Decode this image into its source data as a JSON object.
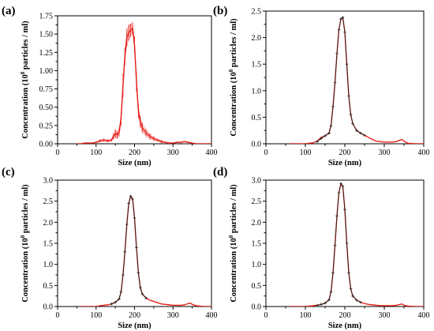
{
  "figure": {
    "panel_count": 4
  },
  "chart_data": [
    {
      "type": "line",
      "panel_label": "(a)",
      "xlabel": "Size (nm)",
      "ylabel_prefix": "Concentration (10",
      "ylabel_sup": "8",
      "ylabel_suffix": " particles / ml)",
      "xlim": [
        0,
        400
      ],
      "ylim": [
        0,
        1.75
      ],
      "xticks": [
        "0",
        "100",
        "200",
        "300",
        "400"
      ],
      "yticks": [
        "0.00",
        "0.25",
        "0.50",
        "0.75",
        "1.00",
        "1.25",
        "1.50",
        "1.75"
      ],
      "grid": false,
      "error_bars": true,
      "series": [
        {
          "color": "#e8211b",
          "x": [
            50,
            60,
            70,
            80,
            90,
            100,
            110,
            120,
            130,
            140,
            145,
            150,
            155,
            160,
            165,
            170,
            175,
            180,
            185,
            190,
            195,
            200,
            205,
            210,
            215,
            220,
            230,
            240,
            250,
            260,
            270,
            280,
            290,
            300,
            310,
            320,
            330,
            340,
            350,
            360,
            370,
            380,
            390,
            400
          ],
          "y": [
            0.0,
            0.0,
            0.01,
            0.01,
            0.01,
            0.02,
            0.04,
            0.05,
            0.04,
            0.05,
            0.1,
            0.14,
            0.12,
            0.16,
            0.35,
            0.8,
            1.2,
            1.45,
            1.52,
            1.55,
            1.58,
            1.35,
            0.85,
            0.45,
            0.3,
            0.22,
            0.15,
            0.1,
            0.07,
            0.05,
            0.03,
            0.02,
            0.01,
            0.01,
            0.02,
            0.02,
            0.03,
            0.02,
            0.01,
            0.0,
            0.0,
            0.0,
            0.0,
            0.0
          ],
          "err": [
            0.0,
            0.0,
            0.0,
            0.0,
            0.0,
            0.01,
            0.02,
            0.02,
            0.02,
            0.02,
            0.04,
            0.06,
            0.05,
            0.06,
            0.1,
            0.16,
            0.12,
            0.12,
            0.11,
            0.09,
            0.08,
            0.12,
            0.14,
            0.1,
            0.08,
            0.07,
            0.05,
            0.04,
            0.03,
            0.02,
            0.02,
            0.01,
            0.01,
            0.0,
            0.01,
            0.01,
            0.01,
            0.01,
            0.0,
            0.0,
            0.0,
            0.0,
            0.0,
            0.0
          ]
        }
      ]
    },
    {
      "type": "line",
      "panel_label": "(b)",
      "xlabel": "Size (nm)",
      "ylabel_prefix": "Concentration (10",
      "ylabel_sup": "8",
      "ylabel_suffix": " particles / ml)",
      "xlim": [
        0,
        400
      ],
      "ylim": [
        0,
        2.5
      ],
      "xticks": [
        "0",
        "100",
        "200",
        "300",
        "400"
      ],
      "yticks": [
        "0.0",
        "0.5",
        "1.0",
        "1.5",
        "2.0",
        "2.5"
      ],
      "grid": false,
      "error_bars": false,
      "series": [
        {
          "color": "#e8211b",
          "x": [
            60,
            80,
            100,
            110,
            120,
            130,
            140,
            150,
            160,
            165,
            170,
            175,
            180,
            185,
            190,
            195,
            200,
            205,
            210,
            215,
            220,
            230,
            240,
            250,
            260,
            270,
            280,
            290,
            300,
            310,
            320,
            330,
            340,
            345,
            350,
            360,
            380,
            400
          ],
          "y": [
            0.0,
            0.0,
            0.0,
            0.01,
            0.02,
            0.05,
            0.12,
            0.15,
            0.2,
            0.35,
            0.7,
            1.15,
            1.7,
            2.15,
            2.35,
            2.38,
            2.1,
            1.5,
            0.9,
            0.55,
            0.38,
            0.25,
            0.2,
            0.16,
            0.12,
            0.08,
            0.05,
            0.04,
            0.03,
            0.03,
            0.03,
            0.04,
            0.07,
            0.08,
            0.05,
            0.01,
            0.0,
            0.0
          ]
        },
        {
          "color": "#222222",
          "x": [
            130,
            140,
            150,
            160,
            165,
            170,
            175,
            180,
            185,
            190,
            195,
            200,
            205,
            210,
            215,
            220,
            230,
            240,
            250
          ],
          "y": [
            0.04,
            0.1,
            0.15,
            0.2,
            0.34,
            0.7,
            1.15,
            1.7,
            2.15,
            2.35,
            2.38,
            2.1,
            1.5,
            0.9,
            0.55,
            0.38,
            0.25,
            0.2,
            0.16
          ]
        }
      ]
    },
    {
      "type": "line",
      "panel_label": "(c)",
      "xlabel": "Size (nm)",
      "ylabel_prefix": "Concentration (10",
      "ylabel_sup": "8",
      "ylabel_suffix": " particles / ml)",
      "xlim": [
        0,
        400
      ],
      "ylim": [
        0,
        3.0
      ],
      "xticks": [
        "0",
        "100",
        "200",
        "300",
        "400"
      ],
      "yticks": [
        "0.0",
        "0.5",
        "1.0",
        "1.5",
        "2.0",
        "2.5",
        "3.0"
      ],
      "grid": false,
      "error_bars": false,
      "series": [
        {
          "color": "#e8211b",
          "x": [
            60,
            80,
            100,
            110,
            120,
            130,
            140,
            150,
            160,
            165,
            170,
            175,
            180,
            185,
            190,
            195,
            200,
            205,
            210,
            215,
            220,
            230,
            240,
            250,
            260,
            270,
            280,
            290,
            300,
            310,
            320,
            330,
            340,
            345,
            350,
            360,
            380,
            400
          ],
          "y": [
            0.0,
            0.0,
            0.0,
            0.02,
            0.03,
            0.04,
            0.06,
            0.1,
            0.18,
            0.35,
            0.75,
            1.3,
            1.95,
            2.45,
            2.62,
            2.55,
            2.1,
            1.4,
            0.8,
            0.45,
            0.3,
            0.2,
            0.15,
            0.12,
            0.09,
            0.06,
            0.05,
            0.04,
            0.03,
            0.03,
            0.03,
            0.04,
            0.07,
            0.08,
            0.05,
            0.02,
            0.0,
            0.0
          ]
        },
        {
          "color": "#222222",
          "x": [
            140,
            150,
            160,
            165,
            170,
            175,
            180,
            185,
            190,
            195,
            200,
            205,
            210,
            215,
            220,
            230
          ],
          "y": [
            0.06,
            0.1,
            0.18,
            0.35,
            0.75,
            1.3,
            1.95,
            2.45,
            2.62,
            2.55,
            2.1,
            1.4,
            0.8,
            0.45,
            0.3,
            0.2
          ]
        }
      ]
    },
    {
      "type": "line",
      "panel_label": "(d)",
      "xlabel": "Size (nm)",
      "ylabel_prefix": "Concentration (10",
      "ylabel_sup": "8",
      "ylabel_suffix": " particles / ml)",
      "xlim": [
        0,
        400
      ],
      "ylim": [
        0,
        3.0
      ],
      "xticks": [
        "0",
        "100",
        "200",
        "300",
        "400"
      ],
      "yticks": [
        "0.0",
        "0.5",
        "1.0",
        "1.5",
        "2.0",
        "2.5",
        "3.0"
      ],
      "grid": false,
      "error_bars": false,
      "series": [
        {
          "color": "#e8211b",
          "x": [
            60,
            80,
            100,
            110,
            120,
            130,
            140,
            150,
            160,
            165,
            170,
            175,
            180,
            185,
            190,
            195,
            200,
            205,
            210,
            215,
            220,
            230,
            240,
            250,
            260,
            270,
            280,
            290,
            300,
            310,
            320,
            330,
            340,
            345,
            350,
            360,
            380,
            400
          ],
          "y": [
            0.0,
            0.0,
            0.0,
            0.01,
            0.02,
            0.03,
            0.05,
            0.08,
            0.16,
            0.35,
            0.8,
            1.45,
            2.15,
            2.7,
            2.92,
            2.85,
            2.3,
            1.5,
            0.8,
            0.42,
            0.25,
            0.15,
            0.1,
            0.07,
            0.05,
            0.04,
            0.03,
            0.02,
            0.02,
            0.02,
            0.02,
            0.03,
            0.05,
            0.06,
            0.03,
            0.01,
            0.0,
            0.0
          ]
        },
        {
          "color": "#222222",
          "x": [
            130,
            140,
            150,
            160,
            165,
            170,
            175,
            180,
            185,
            190,
            195,
            200,
            205,
            210,
            215,
            220,
            230,
            240
          ],
          "y": [
            0.03,
            0.05,
            0.08,
            0.16,
            0.35,
            0.8,
            1.45,
            2.15,
            2.7,
            2.92,
            2.85,
            2.3,
            1.5,
            0.8,
            0.42,
            0.25,
            0.15,
            0.1
          ]
        }
      ]
    }
  ]
}
